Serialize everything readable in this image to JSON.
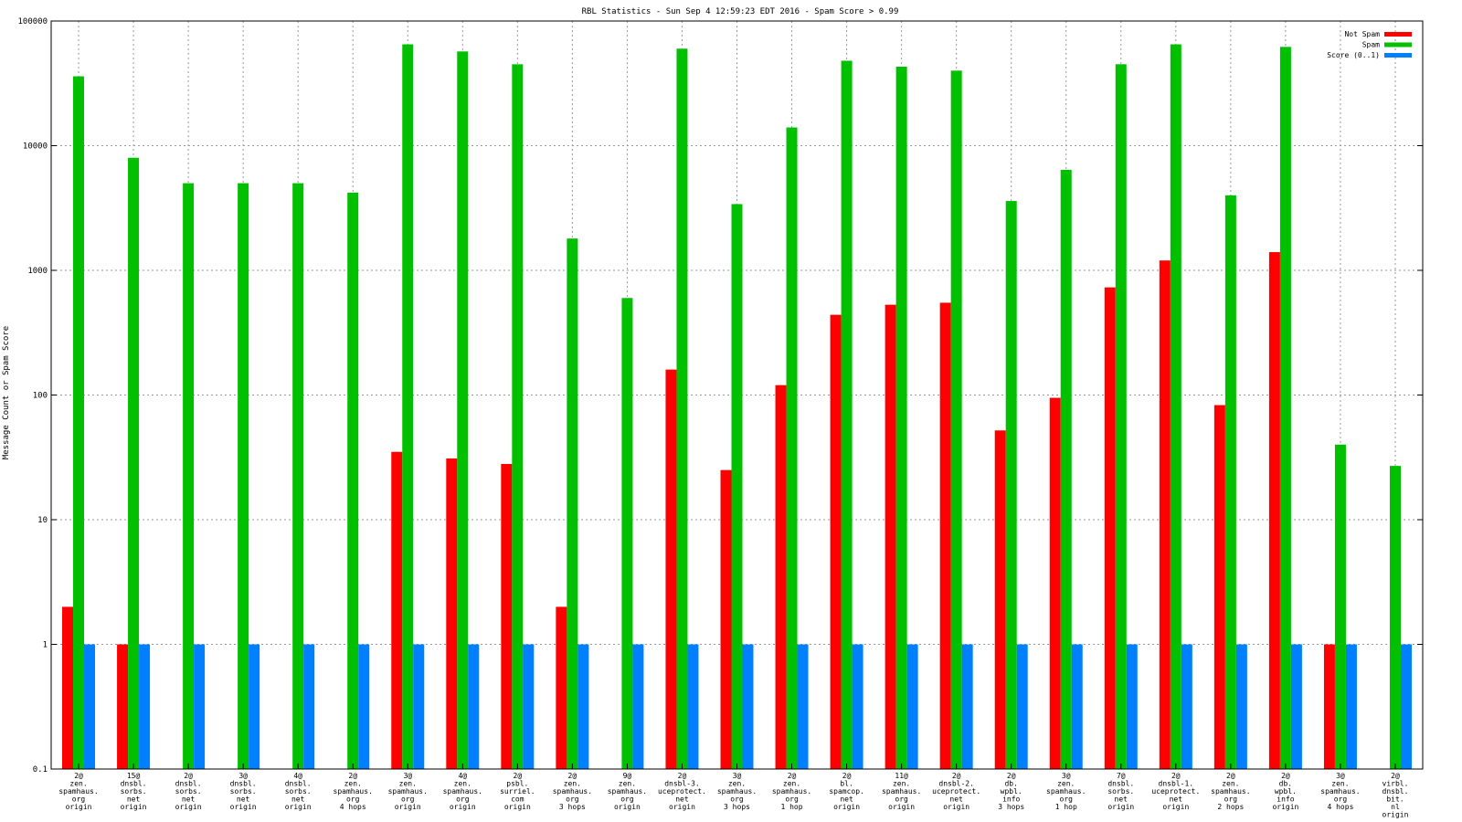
{
  "chart_data": {
    "type": "bar",
    "title": "RBL Statistics - Sun Sep  4 12:59:23 EDT 2016 - Spam Score > 0.99",
    "ylabel": "Message Count or Spam Score",
    "xlabel": "",
    "yscale": "log",
    "ylim": [
      0.1,
      100000
    ],
    "yticks": [
      "0.1",
      "1",
      "10",
      "100",
      "1000",
      "10000",
      "100000"
    ],
    "grid": true,
    "legend_position": "top-right",
    "categories": [
      [
        "2@",
        "zen.",
        "spamhaus.",
        "org",
        "origin"
      ],
      [
        "15@",
        "dnsbl.",
        "sorbs.",
        "net",
        "origin"
      ],
      [
        "2@",
        "dnsbl.",
        "sorbs.",
        "net",
        "origin"
      ],
      [
        "3@",
        "dnsbl.",
        "sorbs.",
        "net",
        "origin"
      ],
      [
        "4@",
        "dnsbl.",
        "sorbs.",
        "net",
        "origin"
      ],
      [
        "2@",
        "zen.",
        "spamhaus.",
        "org",
        "4 hops"
      ],
      [
        "3@",
        "zen.",
        "spamhaus.",
        "org",
        "origin"
      ],
      [
        "4@",
        "zen.",
        "spamhaus.",
        "org",
        "origin"
      ],
      [
        "2@",
        "psbl.",
        "surriel.",
        "com",
        "origin"
      ],
      [
        "2@",
        "zen.",
        "spamhaus.",
        "org",
        "3 hops"
      ],
      [
        "9@",
        "zen.",
        "spamhaus.",
        "org",
        "origin"
      ],
      [
        "2@",
        "dnsbl-3.",
        "uceprotect.",
        "net",
        "origin"
      ],
      [
        "3@",
        "zen.",
        "spamhaus.",
        "org",
        "3 hops"
      ],
      [
        "2@",
        "zen.",
        "spamhaus.",
        "org",
        "1 hop"
      ],
      [
        "2@",
        "bl.",
        "spamcop.",
        "net",
        "origin"
      ],
      [
        "11@",
        "zen.",
        "spamhaus.",
        "org",
        "origin"
      ],
      [
        "2@",
        "dnsbl-2.",
        "uceprotect.",
        "net",
        "origin"
      ],
      [
        "2@",
        "db.",
        "wpbl.",
        "info",
        "3 hops"
      ],
      [
        "3@",
        "zen.",
        "spamhaus.",
        "org",
        "1 hop"
      ],
      [
        "7@",
        "dnsbl.",
        "sorbs.",
        "net",
        "origin"
      ],
      [
        "2@",
        "dnsbl-1.",
        "uceprotect.",
        "net",
        "origin"
      ],
      [
        "2@",
        "zen.",
        "spamhaus.",
        "org",
        "2 hops"
      ],
      [
        "2@",
        "db.",
        "wpbl.",
        "info",
        "origin"
      ],
      [
        "3@",
        "zen.",
        "spamhaus.",
        "org",
        "4 hops"
      ],
      [
        "2@",
        "virbl.",
        "dnsbl.",
        "bit.",
        "nl",
        "origin"
      ]
    ],
    "series": [
      {
        "name": "Not Spam",
        "color": "#ff0000",
        "values": [
          2,
          1,
          null,
          null,
          null,
          null,
          35,
          31,
          28,
          2,
          null,
          160,
          25,
          120,
          440,
          530,
          550,
          52,
          95,
          730,
          1200,
          83,
          1400,
          1,
          null
        ]
      },
      {
        "name": "Spam",
        "color": "#00c000",
        "values": [
          36000,
          8000,
          5000,
          5000,
          5000,
          4200,
          65000,
          57000,
          45000,
          1800,
          600,
          60000,
          3400,
          14000,
          48000,
          43000,
          40000,
          3600,
          6400,
          45000,
          65000,
          4000,
          62000,
          40,
          27
        ]
      },
      {
        "name": "Score (0..1)",
        "color": "#0080ff",
        "values": [
          1,
          1,
          1,
          1,
          1,
          1,
          1,
          1,
          1,
          1,
          1,
          1,
          1,
          1,
          1,
          1,
          1,
          1,
          1,
          1,
          1,
          1,
          1,
          1,
          1
        ]
      }
    ]
  }
}
